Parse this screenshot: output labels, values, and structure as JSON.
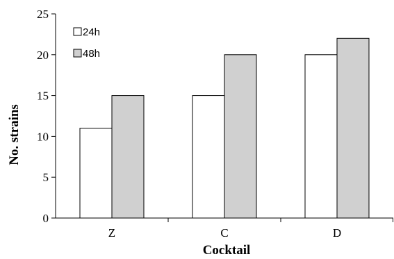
{
  "chart_data": {
    "type": "bar",
    "categories": [
      "Z",
      "C",
      "D"
    ],
    "series": [
      {
        "name": "24h",
        "values": [
          11,
          15,
          20
        ],
        "color": "#ffffff"
      },
      {
        "name": "48h",
        "values": [
          15,
          20,
          22
        ],
        "color": "#d0d0d0"
      }
    ],
    "title": "",
    "xlabel": "Cocktail",
    "ylabel": "No. strains",
    "ylim": [
      0,
      25
    ],
    "yticks": [
      0,
      5,
      10,
      15,
      20,
      25
    ],
    "grid": false,
    "legend_position": "top-left"
  }
}
